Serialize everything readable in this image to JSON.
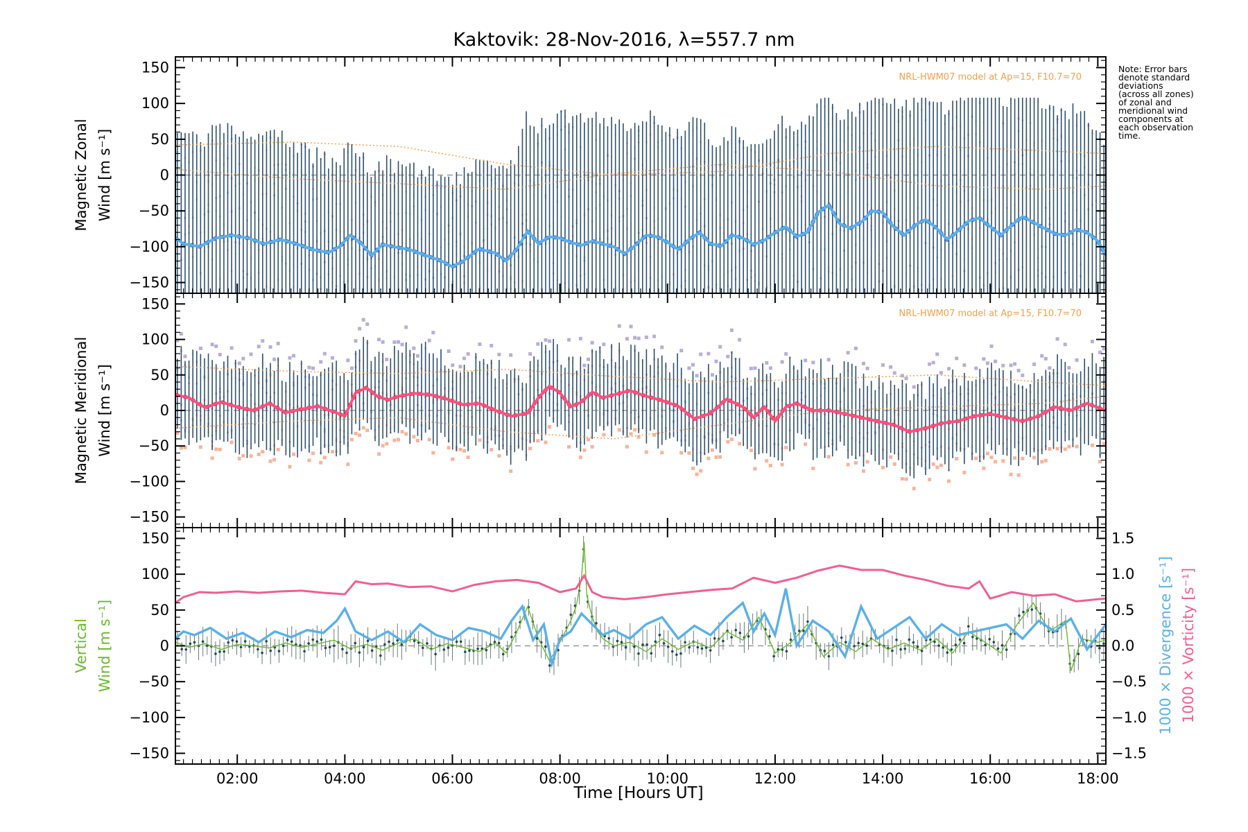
{
  "title": "Kaktovik: 28-Nov-2016, λ=557.7 nm",
  "note": [
    "Note: Error bars",
    "denote standard",
    "deviations",
    "(across all zones)",
    "of zonal and",
    "meridional wind",
    "components at",
    "each observation",
    "time."
  ],
  "x_axis": {
    "label": "Time [Hours UT]",
    "range": [
      0.85,
      18.15
    ],
    "ticks": [
      2,
      4,
      6,
      8,
      10,
      12,
      14,
      16,
      18
    ],
    "tick_labels": [
      "02:00",
      "04:00",
      "06:00",
      "08:00",
      "10:00",
      "12:00",
      "14:00",
      "16:00",
      "18:00"
    ]
  },
  "colors": {
    "zonal_mean": "#5ab0e8",
    "zonal_mean_dark": "#1f3fdc",
    "meridional_mean": "#ff5080",
    "meridional_mean_dark": "#e02020",
    "errorbar": "#2d4f6e",
    "model": "#f5a04a",
    "vertical": "#6ab82e",
    "divergence": "#5ab0e8",
    "vorticity": "#f05e92",
    "lavender": "#b8aed6",
    "scatter_yellow": "#f0f0a0",
    "scatter_salmon": "#f8b49a"
  },
  "chart_data": [
    {
      "name": "zonal",
      "type": "line",
      "ylabel_lines": [
        "Magnetic Zonal",
        "Wind [m s⁻¹]"
      ],
      "ylim": [
        -165,
        165
      ],
      "yticks": [
        -150,
        -100,
        -50,
        0,
        50,
        100,
        150
      ],
      "model_label": "NRL-HWM07 model at Ap=15, F10.7=70",
      "mean": {
        "x": [
          0.85,
          1.0,
          1.3,
          1.6,
          1.9,
          2.2,
          2.5,
          2.8,
          3.1,
          3.4,
          3.7,
          3.9,
          4.1,
          4.3,
          4.5,
          4.7,
          4.9,
          5.2,
          5.5,
          5.8,
          6.0,
          6.2,
          6.5,
          6.8,
          7.0,
          7.2,
          7.4,
          7.6,
          7.8,
          8.0,
          8.2,
          8.4,
          8.6,
          8.8,
          9.0,
          9.2,
          9.4,
          9.6,
          9.8,
          10.0,
          10.2,
          10.4,
          10.6,
          10.8,
          11.0,
          11.2,
          11.4,
          11.6,
          11.8,
          12.0,
          12.2,
          12.4,
          12.6,
          12.8,
          13.0,
          13.2,
          13.4,
          13.6,
          13.8,
          14.0,
          14.2,
          14.4,
          14.6,
          14.8,
          15.0,
          15.2,
          15.4,
          15.6,
          15.8,
          16.0,
          16.2,
          16.4,
          16.6,
          16.8,
          17.0,
          17.2,
          17.4,
          17.6,
          17.8,
          18.0,
          18.15
        ],
        "y": [
          -88,
          -96,
          -100,
          -88,
          -84,
          -88,
          -96,
          -90,
          -96,
          -104,
          -108,
          -100,
          -84,
          -95,
          -112,
          -97,
          -100,
          -104,
          -112,
          -120,
          -128,
          -120,
          -103,
          -109,
          -120,
          -103,
          -78,
          -96,
          -86,
          -88,
          -94,
          -98,
          -92,
          -96,
          -100,
          -110,
          -98,
          -84,
          -86,
          -94,
          -104,
          -90,
          -80,
          -96,
          -99,
          -84,
          -88,
          -97,
          -91,
          -80,
          -72,
          -86,
          -80,
          -52,
          -42,
          -68,
          -74,
          -66,
          -50,
          -52,
          -72,
          -84,
          -70,
          -62,
          -74,
          -90,
          -78,
          -64,
          -60,
          -72,
          -84,
          -70,
          -58,
          -66,
          -74,
          -82,
          -84,
          -76,
          -80,
          -92,
          -112
        ]
      },
      "model_upper": {
        "x": [
          0.85,
          3.0,
          5.0,
          7.0,
          9.0,
          11.0,
          13.0,
          15.0,
          17.0,
          18.15
        ],
        "y": [
          42,
          46,
          40,
          15,
          0,
          5,
          30,
          40,
          34,
          30
        ]
      },
      "model_lower": {
        "x": [
          0.85,
          3.0,
          5.0,
          7.0,
          9.0,
          11.0,
          13.0,
          15.0,
          17.0,
          18.15
        ],
        "y": [
          8,
          -5,
          -12,
          -20,
          2,
          15,
          5,
          -15,
          -20,
          -15
        ]
      }
    },
    {
      "name": "meridional",
      "type": "line",
      "ylabel_lines": [
        "Magnetic Meridional",
        "Wind [m s⁻¹]"
      ],
      "ylim": [
        -165,
        165
      ],
      "yticks": [
        -150,
        -100,
        -50,
        0,
        50,
        100,
        150
      ],
      "model_label": "NRL-HWM07 model at Ap=15, F10.7=70",
      "mean": {
        "x": [
          0.85,
          1.1,
          1.4,
          1.7,
          2.0,
          2.3,
          2.6,
          2.9,
          3.2,
          3.5,
          3.8,
          4.0,
          4.2,
          4.4,
          4.6,
          4.8,
          5.0,
          5.3,
          5.6,
          5.9,
          6.2,
          6.5,
          6.8,
          7.1,
          7.4,
          7.6,
          7.8,
          8.0,
          8.2,
          8.4,
          8.6,
          8.8,
          9.0,
          9.3,
          9.6,
          9.9,
          10.2,
          10.5,
          10.8,
          11.1,
          11.4,
          11.6,
          11.8,
          12.0,
          12.2,
          12.4,
          12.7,
          13.0,
          13.3,
          13.6,
          13.9,
          14.2,
          14.5,
          14.8,
          15.1,
          15.4,
          15.7,
          16.0,
          16.3,
          16.6,
          16.9,
          17.2,
          17.5,
          17.8,
          18.15
        ],
        "y": [
          22,
          18,
          4,
          12,
          5,
          0,
          10,
          -3,
          2,
          6,
          -2,
          -8,
          25,
          32,
          20,
          15,
          20,
          24,
          22,
          16,
          8,
          10,
          0,
          -8,
          -4,
          18,
          34,
          25,
          5,
          12,
          26,
          18,
          22,
          28,
          20,
          14,
          6,
          -12,
          -4,
          16,
          5,
          -10,
          5,
          -15,
          5,
          10,
          0,
          0,
          -5,
          -10,
          -15,
          -20,
          -30,
          -25,
          -18,
          -15,
          -8,
          -5,
          -10,
          -15,
          -8,
          5,
          0,
          10,
          0
        ]
      },
      "model_upper": {
        "x": [
          0.85,
          3.0,
          5.0,
          7.0,
          9.0,
          11.0,
          13.0,
          15.0,
          17.0,
          18.15
        ],
        "y": [
          62,
          55,
          52,
          58,
          48,
          40,
          45,
          50,
          40,
          35
        ]
      },
      "model_lower": {
        "x": [
          0.85,
          3.0,
          5.0,
          7.0,
          9.0,
          11.0,
          13.0,
          15.0,
          17.0,
          18.15
        ],
        "y": [
          -25,
          -15,
          -10,
          -30,
          -40,
          -20,
          0,
          5,
          10,
          20
        ]
      }
    },
    {
      "name": "vertical",
      "type": "line",
      "ylabel_lines": [
        "Vertical",
        "Wind [m s⁻¹]"
      ],
      "ylim": [
        -165,
        165
      ],
      "yticks": [
        -150,
        -100,
        -50,
        0,
        50,
        100,
        150
      ],
      "y2lim": [
        -1.65,
        1.65
      ],
      "y2ticks": [
        -1.5,
        -1.0,
        -0.5,
        0.0,
        0.5,
        1.0,
        1.5
      ],
      "y2tick_labels": [
        "−1.5",
        "−1.0",
        "−0.5",
        "0.0",
        "0.5",
        "1.0",
        "1.5"
      ],
      "y2label_divergence": "1000 × Divergence [s⁻¹]",
      "y2label_vorticity": "1000 × Vorticity [s⁻¹]",
      "series": [
        {
          "name": "vorticity",
          "axis": "right",
          "x": [
            0.85,
            1.0,
            1.3,
            1.6,
            2.0,
            2.4,
            2.8,
            3.2,
            3.6,
            4.0,
            4.2,
            4.5,
            4.8,
            5.2,
            5.6,
            6.0,
            6.4,
            6.8,
            7.2,
            7.6,
            8.0,
            8.3,
            8.45,
            8.6,
            8.8,
            9.2,
            9.6,
            10.0,
            10.4,
            10.8,
            11.2,
            11.6,
            12.0,
            12.4,
            12.8,
            13.2,
            13.6,
            14.0,
            14.4,
            14.8,
            15.2,
            15.6,
            15.8,
            16.0,
            16.4,
            16.8,
            17.2,
            17.6,
            18.0,
            18.15
          ],
          "y": [
            0.6,
            0.68,
            0.75,
            0.74,
            0.76,
            0.74,
            0.76,
            0.77,
            0.74,
            0.72,
            0.9,
            0.86,
            0.87,
            0.82,
            0.83,
            0.76,
            0.85,
            0.9,
            0.92,
            0.88,
            0.75,
            0.8,
            0.98,
            0.75,
            0.68,
            0.65,
            0.68,
            0.72,
            0.75,
            0.78,
            0.8,
            0.95,
            0.88,
            0.95,
            1.05,
            1.12,
            1.06,
            1.06,
            0.98,
            0.92,
            0.84,
            0.8,
            0.9,
            0.66,
            0.75,
            0.7,
            0.72,
            0.62,
            0.65,
            0.66
          ]
        },
        {
          "name": "divergence",
          "axis": "right",
          "x": [
            0.85,
            1.0,
            1.2,
            1.5,
            1.8,
            2.1,
            2.4,
            2.7,
            3.0,
            3.3,
            3.6,
            3.85,
            4.0,
            4.2,
            4.5,
            4.8,
            5.1,
            5.4,
            5.7,
            6.0,
            6.3,
            6.6,
            6.9,
            7.1,
            7.3,
            7.5,
            7.7,
            7.85,
            8.0,
            8.2,
            8.4,
            8.6,
            8.8,
            9.0,
            9.3,
            9.6,
            9.9,
            10.2,
            10.5,
            10.8,
            11.1,
            11.4,
            11.6,
            11.8,
            12.0,
            12.2,
            12.4,
            12.7,
            13.0,
            13.3,
            13.6,
            13.9,
            14.2,
            14.5,
            14.8,
            15.1,
            15.4,
            15.7,
            16.0,
            16.3,
            16.6,
            16.9,
            17.2,
            17.5,
            17.8,
            18.0,
            18.15
          ],
          "y": [
            0.1,
            0.2,
            0.15,
            0.25,
            0.1,
            0.18,
            0.05,
            0.2,
            0.12,
            0.22,
            0.18,
            0.35,
            0.52,
            0.2,
            0.08,
            0.2,
            0.05,
            0.3,
            0.15,
            0.08,
            0.25,
            0.2,
            0.1,
            0.35,
            0.55,
            0.08,
            0.3,
            -0.25,
            0.1,
            0.2,
            0.45,
            0.3,
            0.15,
            0.22,
            0.1,
            0.3,
            0.4,
            0.1,
            0.28,
            0.15,
            0.4,
            0.6,
            0.2,
            0.45,
            0.15,
            0.8,
            0.0,
            0.35,
            0.2,
            -0.15,
            0.55,
            0.1,
            0.25,
            0.4,
            0.1,
            0.3,
            0.15,
            0.2,
            0.25,
            0.3,
            0.1,
            0.35,
            0.2,
            0.38,
            -0.05,
            0.15,
            0.3
          ]
        },
        {
          "name": "vertical",
          "axis": "left",
          "x": [
            0.85,
            1.1,
            1.4,
            1.7,
            2.0,
            2.3,
            2.6,
            2.9,
            3.2,
            3.5,
            3.8,
            4.1,
            4.4,
            4.7,
            5.0,
            5.3,
            5.6,
            5.9,
            6.2,
            6.5,
            6.8,
            7.0,
            7.2,
            7.4,
            7.6,
            7.8,
            7.9,
            8.0,
            8.1,
            8.2,
            8.3,
            8.4,
            8.45,
            8.5,
            8.6,
            8.7,
            8.8,
            9.0,
            9.3,
            9.6,
            9.9,
            10.2,
            10.5,
            10.8,
            11.1,
            11.4,
            11.7,
            12.0,
            12.3,
            12.6,
            12.9,
            13.2,
            13.5,
            13.8,
            14.1,
            14.4,
            14.7,
            15.0,
            15.3,
            15.6,
            15.9,
            16.2,
            16.5,
            16.8,
            17.1,
            17.4,
            17.5,
            17.7,
            18.0,
            18.15
          ],
          "y": [
            5,
            -2,
            3,
            -5,
            2,
            0,
            -3,
            4,
            -2,
            3,
            8,
            -4,
            2,
            -6,
            4,
            10,
            -5,
            3,
            -2,
            -8,
            4,
            -10,
            20,
            55,
            10,
            -20,
            -10,
            5,
            20,
            35,
            55,
            95,
            145,
            70,
            40,
            20,
            10,
            0,
            5,
            -8,
            10,
            -5,
            6,
            -3,
            20,
            8,
            40,
            -10,
            5,
            30,
            -15,
            5,
            -8,
            10,
            -5,
            4,
            -6,
            10,
            -10,
            20,
            5,
            -10,
            30,
            60,
            20,
            35,
            -35,
            10,
            5,
            8
          ]
        }
      ]
    }
  ]
}
